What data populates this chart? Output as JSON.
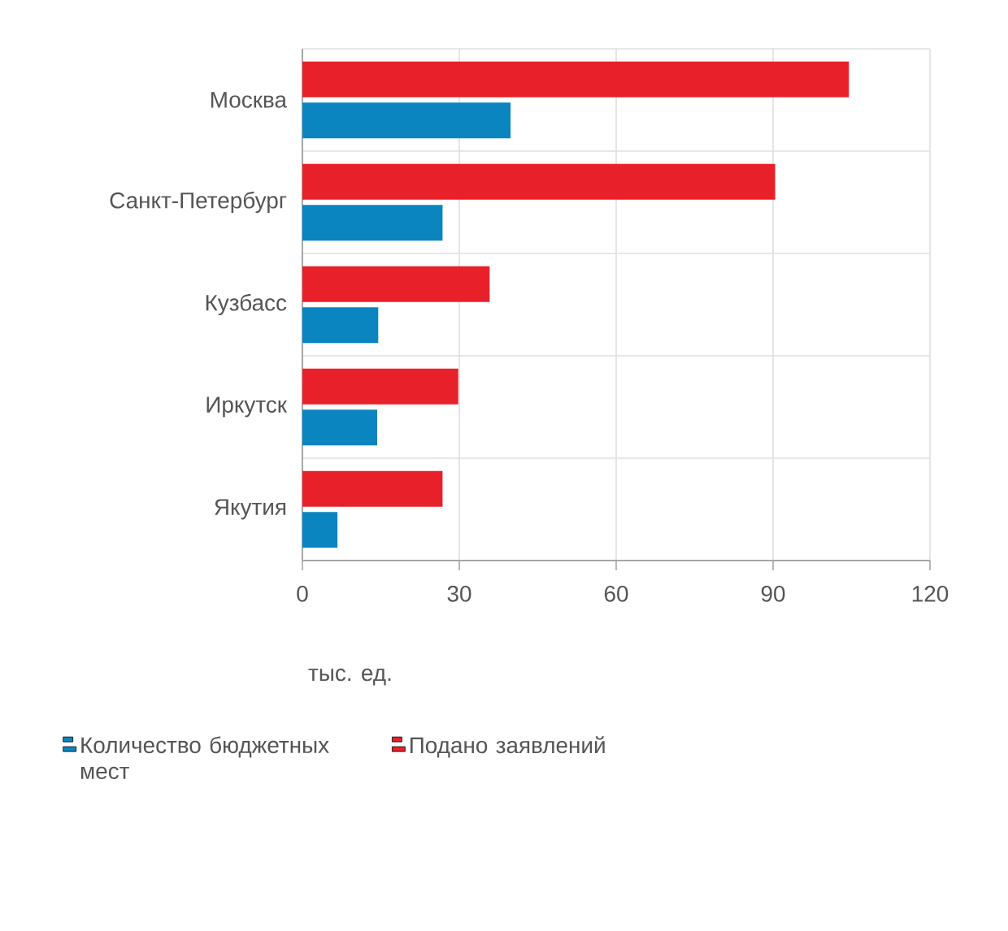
{
  "chart_data": {
    "type": "bar",
    "orientation": "horizontal",
    "categories": [
      "Москва",
      "Санкт-Петербург",
      "Кузбасс",
      "Иркутск",
      "Якутия"
    ],
    "series": [
      {
        "name": "Количество бюджетных мест",
        "color": "#0a85bf",
        "values": [
          39.8,
          26.8,
          14.5,
          14.3,
          6.7
        ]
      },
      {
        "name": "Подано заявлений",
        "color": "#e8202a",
        "values": [
          104.5,
          90.4,
          35.8,
          29.8,
          26.8
        ]
      }
    ],
    "xlabel": "тыс. ед.",
    "xlim": [
      0,
      120
    ],
    "xticks": [
      0,
      30,
      60,
      90,
      120
    ],
    "grid": true,
    "legend": "bottom"
  }
}
